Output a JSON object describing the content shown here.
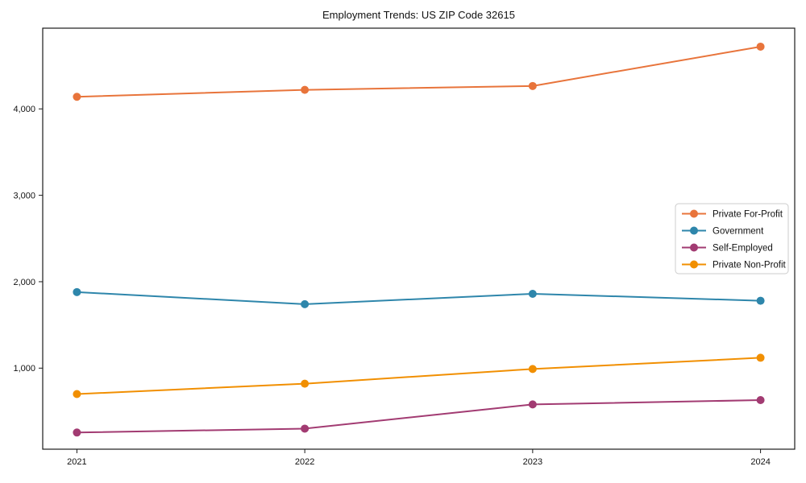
{
  "figure": {
    "background": "#ffffff"
  },
  "chart_data": {
    "type": "line",
    "title": "Employment Trends: US ZIP Code 32615",
    "xlabel": "",
    "ylabel": "",
    "categories": [
      "2021",
      "2022",
      "2023",
      "2024"
    ],
    "x_values": [
      2021,
      2022,
      2023,
      2024
    ],
    "series": [
      {
        "name": "Private For-Profit",
        "color": "#E8743B",
        "values": [
          4140,
          4220,
          4265,
          4720
        ]
      },
      {
        "name": "Government",
        "color": "#2E86AB",
        "values": [
          1880,
          1740,
          1860,
          1780
        ]
      },
      {
        "name": "Self-Employed",
        "color": "#A23B72",
        "values": [
          255,
          300,
          580,
          630
        ]
      },
      {
        "name": "Private Non-Profit",
        "color": "#F18F01",
        "values": [
          700,
          820,
          990,
          1120
        ]
      }
    ],
    "y_ticks": [
      {
        "value": 1000,
        "label": "1,000"
      },
      {
        "value": 2000,
        "label": "2,000"
      },
      {
        "value": 3000,
        "label": "3,000"
      },
      {
        "value": 4000,
        "label": "4,000"
      }
    ],
    "xlim": [
      2020.85,
      2024.15
    ],
    "ylim": [
      62,
      4934
    ],
    "grid": false,
    "marker": "circle",
    "line_width": 2,
    "legend": {
      "position": "center-right",
      "entries": [
        "Private For-Profit",
        "Government",
        "Self-Employed",
        "Private Non-Profit"
      ]
    },
    "frame_color": "#1a1a1a"
  }
}
